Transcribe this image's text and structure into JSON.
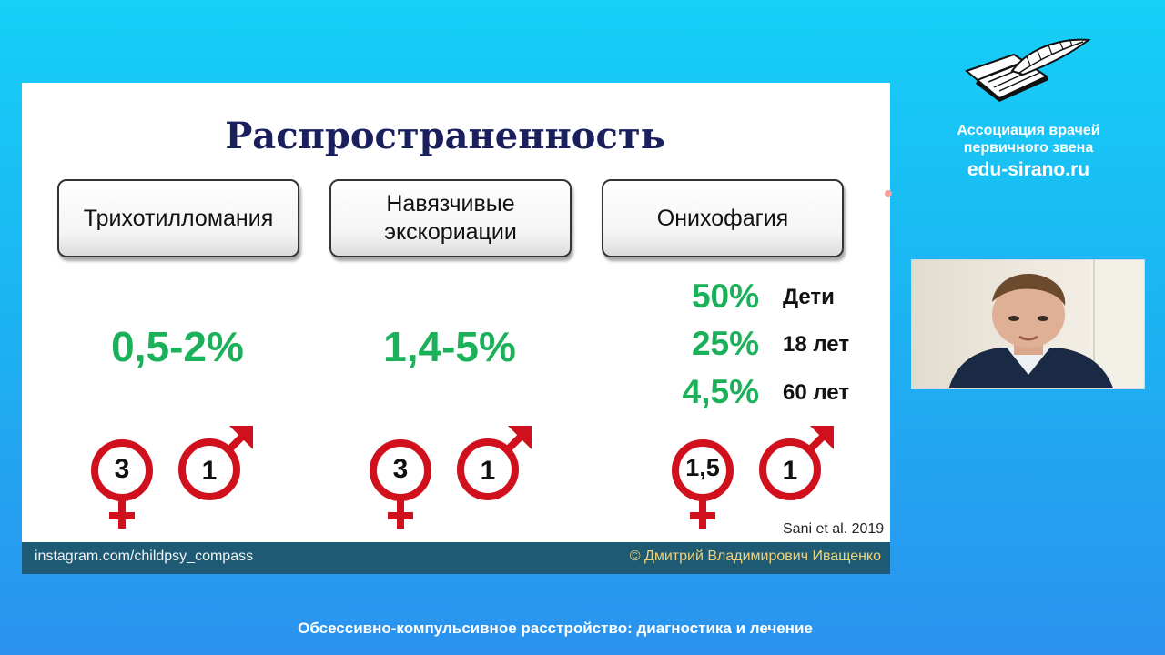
{
  "slide": {
    "title": "Распространенность",
    "columns": [
      {
        "heading": "Трихотилломания",
        "prevalence": "0,5-2%",
        "female_ratio": "3",
        "male_ratio": "1"
      },
      {
        "heading": "Навязчивые экскориации",
        "prevalence": "1,4-5%",
        "female_ratio": "3",
        "male_ratio": "1"
      },
      {
        "heading": "Онихофагия",
        "age_rows": [
          {
            "pct": "50%",
            "label": "Дети"
          },
          {
            "pct": "25%",
            "label": "18 лет"
          },
          {
            "pct": "4,5%",
            "label": "60 лет"
          }
        ],
        "female_ratio": "1,5",
        "male_ratio": "1"
      }
    ],
    "citation": "Sani et al. 2019",
    "footer_left": "instagram.com/childpsy_compass",
    "footer_right": "© Дмитрий Владимирович Иващенко"
  },
  "branding": {
    "org_name": "Ассоциация врачей первичного звена",
    "site": "edu-sirano.ru",
    "logo_icon": "book-quill-icon"
  },
  "webcam": {
    "label": "presenter-video"
  },
  "caption": "Обсессивно-компульсивное расстройство: диагностика и лечение",
  "colors": {
    "green": "#1cb05a",
    "symbol_red": "#d0101c",
    "title_navy": "#1a1f5e",
    "footer_bar": "#1e5a73"
  }
}
